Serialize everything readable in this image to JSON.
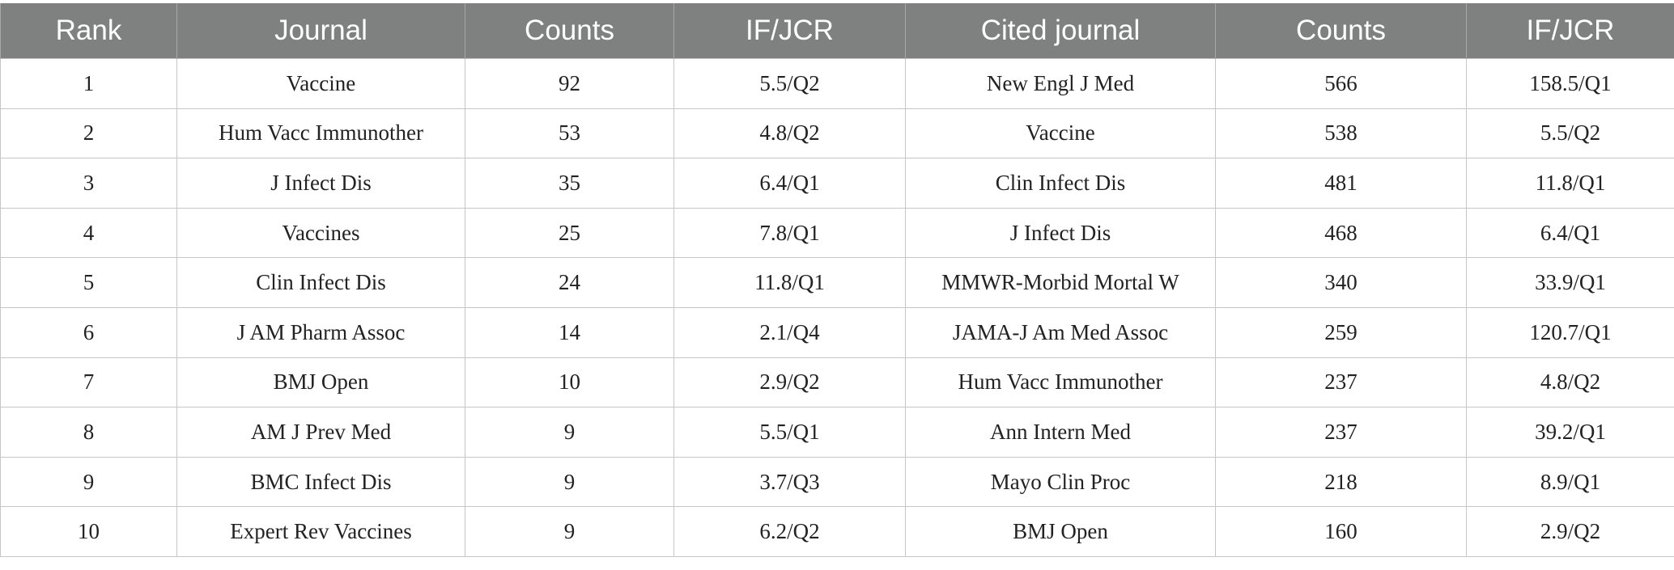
{
  "table": {
    "headers": [
      "Rank",
      "Journal",
      "Counts",
      "IF/JCR",
      "Cited journal",
      "Counts",
      "IF/JCR"
    ],
    "rows": [
      [
        "1",
        "Vaccine",
        "92",
        "5.5/Q2",
        "New Engl J Med",
        "566",
        "158.5/Q1"
      ],
      [
        "2",
        "Hum Vacc Immunother",
        "53",
        "4.8/Q2",
        "Vaccine",
        "538",
        "5.5/Q2"
      ],
      [
        "3",
        "J Infect Dis",
        "35",
        "6.4/Q1",
        "Clin Infect Dis",
        "481",
        "11.8/Q1"
      ],
      [
        "4",
        "Vaccines",
        "25",
        "7.8/Q1",
        "J Infect Dis",
        "468",
        "6.4/Q1"
      ],
      [
        "5",
        "Clin Infect Dis",
        "24",
        "11.8/Q1",
        "MMWR-Morbid Mortal W",
        "340",
        "33.9/Q1"
      ],
      [
        "6",
        "J AM Pharm Assoc",
        "14",
        "2.1/Q4",
        "JAMA-J Am Med Assoc",
        "259",
        "120.7/Q1"
      ],
      [
        "7",
        "BMJ Open",
        "10",
        "2.9/Q2",
        "Hum Vacc Immunother",
        "237",
        "4.8/Q2"
      ],
      [
        "8",
        "AM J Prev Med",
        "9",
        "5.5/Q1",
        "Ann Intern Med",
        "237",
        "39.2/Q1"
      ],
      [
        "9",
        "BMC Infect Dis",
        "9",
        "3.7/Q3",
        "Mayo Clin Proc",
        "218",
        "8.9/Q1"
      ],
      [
        "10",
        "Expert Rev Vaccines",
        "9",
        "6.2/Q2",
        "BMJ Open",
        "160",
        "2.9/Q2"
      ]
    ]
  }
}
